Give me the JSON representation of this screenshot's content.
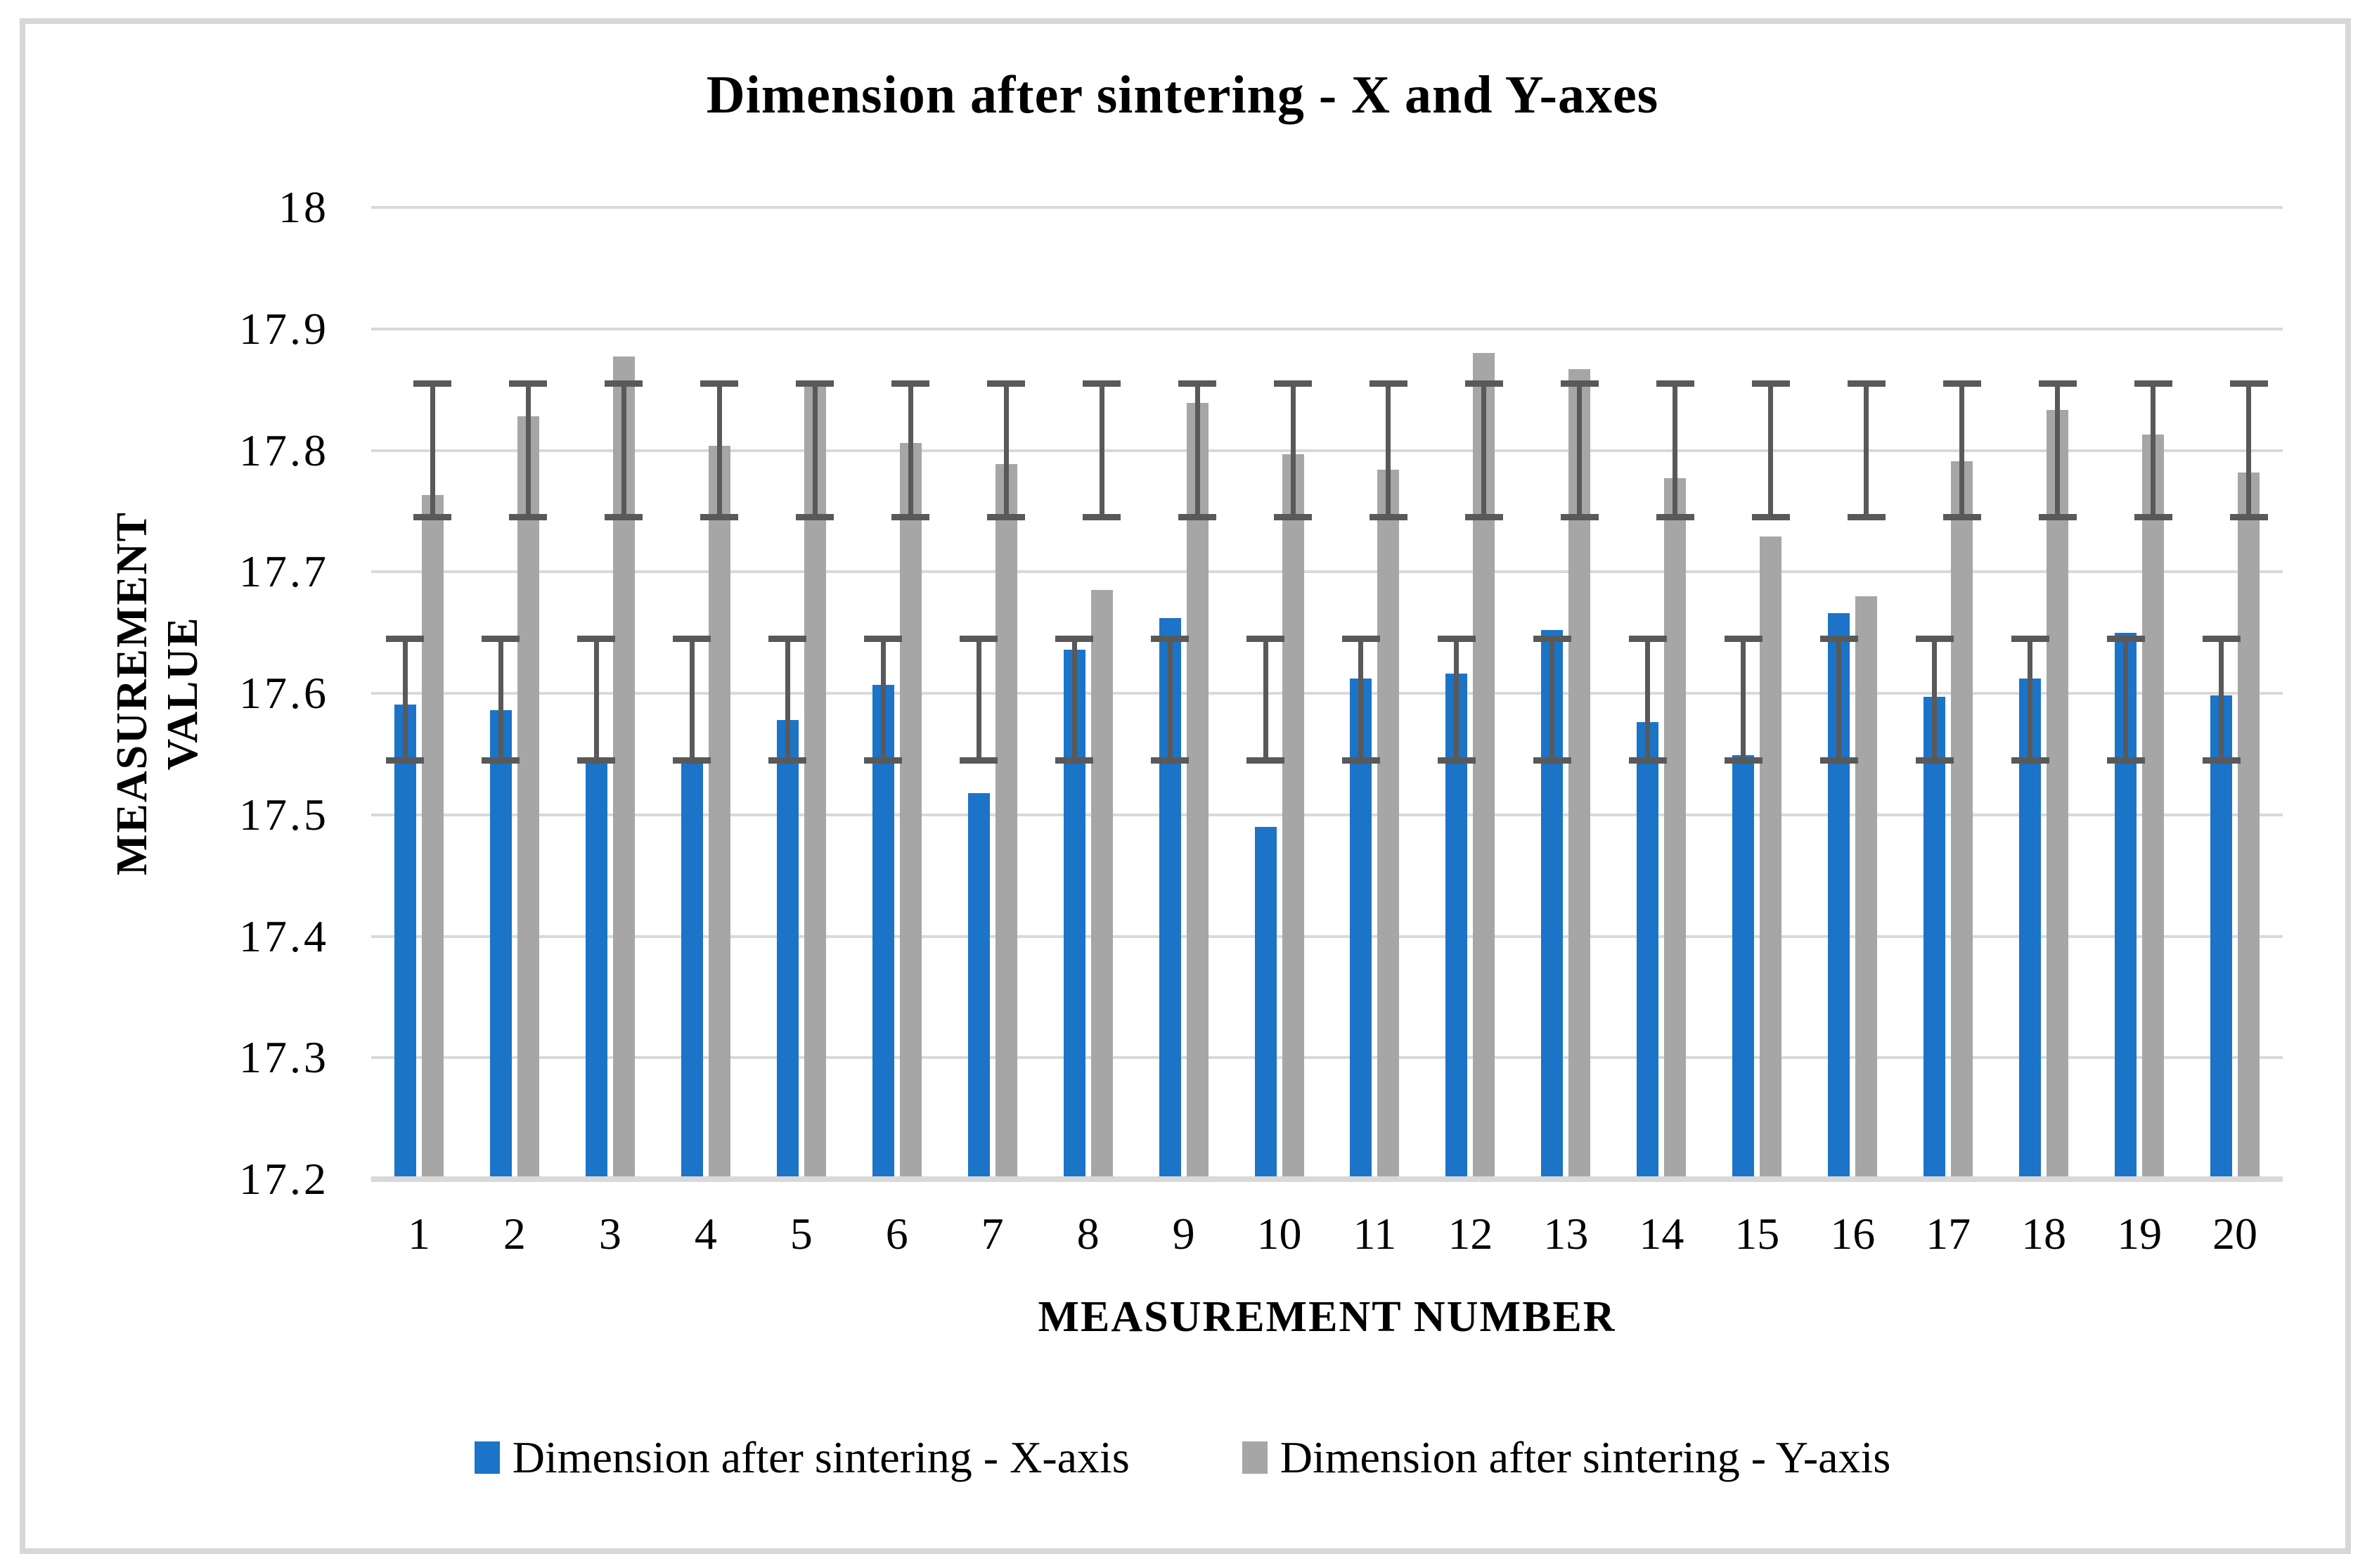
{
  "chart_data": {
    "type": "bar",
    "title": "Dimension after sintering - X and Y-axes",
    "xlabel": "MEASUREMENT NUMBER",
    "ylabel": "MEASUREMENT VALUE",
    "ylim": [
      17.2,
      18
    ],
    "grid": true,
    "legend_position": "bottom",
    "gridline_color": "#D9D9D9",
    "axis_line_color": "#D9D9D9",
    "error_bar_color": "#595959",
    "yticks": [
      {
        "label": "18",
        "value": 18
      },
      {
        "label": "17.9",
        "value": 17.9
      },
      {
        "label": "17.8",
        "value": 17.8
      },
      {
        "label": "17.7",
        "value": 17.7
      },
      {
        "label": "17.6",
        "value": 17.6
      },
      {
        "label": "17.5",
        "value": 17.5
      },
      {
        "label": "17.4",
        "value": 17.4
      },
      {
        "label": "17.3",
        "value": 17.3
      },
      {
        "label": "17.2",
        "value": 17.2
      }
    ],
    "categories": [
      "1",
      "2",
      "3",
      "4",
      "5",
      "6",
      "7",
      "8",
      "9",
      "10",
      "11",
      "12",
      "13",
      "14",
      "15",
      "16",
      "17",
      "18",
      "19",
      "20"
    ],
    "series": [
      {
        "name": "Dimension after sintering - X-axis",
        "color": "#1B74C8",
        "values": [
          17.591,
          17.586,
          17.547,
          17.545,
          17.578,
          17.607,
          17.518,
          17.636,
          17.662,
          17.49,
          17.612,
          17.616,
          17.652,
          17.576,
          17.549,
          17.666,
          17.597,
          17.612,
          17.65,
          17.598
        ],
        "error_bar": {
          "low": 17.545,
          "high": 17.645
        }
      },
      {
        "name": "Dimension after sintering - Y-axis",
        "color": "#A6A6A6",
        "values": [
          17.763,
          17.828,
          17.877,
          17.804,
          17.855,
          17.806,
          17.789,
          17.685,
          17.839,
          17.797,
          17.784,
          17.88,
          17.867,
          17.777,
          17.729,
          17.68,
          17.791,
          17.833,
          17.813,
          17.782
        ],
        "error_bar": {
          "low": 17.745,
          "high": 17.855
        }
      }
    ]
  }
}
